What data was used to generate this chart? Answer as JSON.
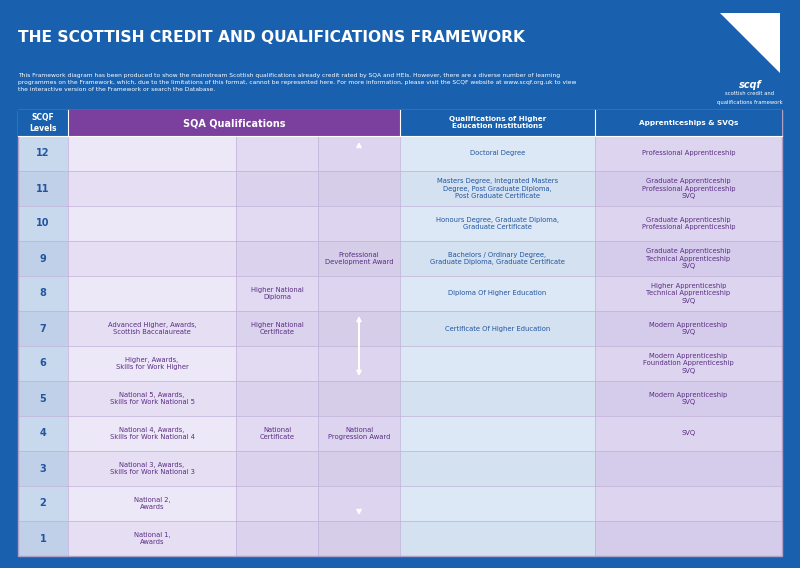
{
  "title": "THE SCOTTISH CREDIT AND QUALIFICATIONS FRAMEWORK",
  "subtitle": "This Framework diagram has been produced to show the mainstream Scottish qualifications already credit rated by SQA and HEIs. However, there are a diverse number of learning\nprogrammes on the Framework, which, due to the limitations of this format, cannot be represented here. For more information, please visit the SCQF website at www.scqf.org.uk to view\nthe interactive version of the Framework or search the Database.",
  "bg_color": "#1961ae",
  "header_purple": "#7b3f9e",
  "header_blue_dark": "#1961ae",
  "scqf_col_bg": "#c5d5ea",
  "sqa1_bg_light": "#ede8f5",
  "sqa1_bg_mid": "#e2d8f0",
  "sqa2_bg_light": "#e0d8ee",
  "sqa2_bg_mid": "#d8d0e8",
  "sqa3_bg_light": "#dcd4ea",
  "sqa3_bg_mid": "#d4cce4",
  "hei_bg_light": "#dce8f5",
  "hei_bg_mid": "#d0e0f0",
  "app_bg_light": "#ddd5ec",
  "app_bg_mid": "#d5cde6",
  "text_purple": "#5a2d82",
  "text_blue": "#2255a0",
  "text_white": "#ffffff",
  "grid_color": "#bbaacc",
  "levels": [
    12,
    11,
    10,
    9,
    8,
    7,
    6,
    5,
    4,
    3,
    2,
    1
  ],
  "sqa_col1": {
    "7": "Advanced Higher, Awards,\nScottish Baccalaureate",
    "6": "Higher, Awards,\nSkills for Work Higher",
    "5": "National 5, Awards,\nSkills for Work National 5",
    "4": "National 4, Awards,\nSkills for Work National 4",
    "3": "National 3, Awards,\nSkills for Work National 3",
    "2": "National 2,\nAwards",
    "1": "National 1,\nAwards"
  },
  "sqa_col2": {
    "8": "Higher National\nDiploma",
    "7": "Higher National\nCertificate",
    "4": "National\nCertificate"
  },
  "sqa_col3": {
    "9": "Professional\nDevelopment Award",
    "4": "National\nProgression Award"
  },
  "hei_col": {
    "12": "Doctoral Degree",
    "11": "Masters Degree, Integrated Masters\nDegree, Post Graduate Diploma,\nPost Graduate Certificate",
    "10": "Honours Degree, Graduate Diploma,\nGraduate Certificate",
    "9": "Bachelors / Ordinary Degree,\nGraduate Diploma, Graduate Certificate",
    "8": "Diploma Of Higher Education",
    "7": "Certificate Of Higher Education"
  },
  "app_col": {
    "12": "Professional Apprenticeship",
    "11": "Graduate Apprenticeship\nProfessional Apprenticeship\nSVQ",
    "10": "Graduate Apprenticeship\nProfessional Apprenticeship",
    "9": "Graduate Apprenticeship\nTechnical Apprenticeship\nSVQ",
    "8": "Higher Apprenticeship\nTechnical Apprenticeship\nSVQ",
    "7": "Modern Apprenticeship\nSVQ",
    "6": "Modern Apprenticeship\nFoundation Apprenticeship\nSVQ",
    "5": "Modern Apprenticeship\nSVQ",
    "4": "SVQ"
  }
}
